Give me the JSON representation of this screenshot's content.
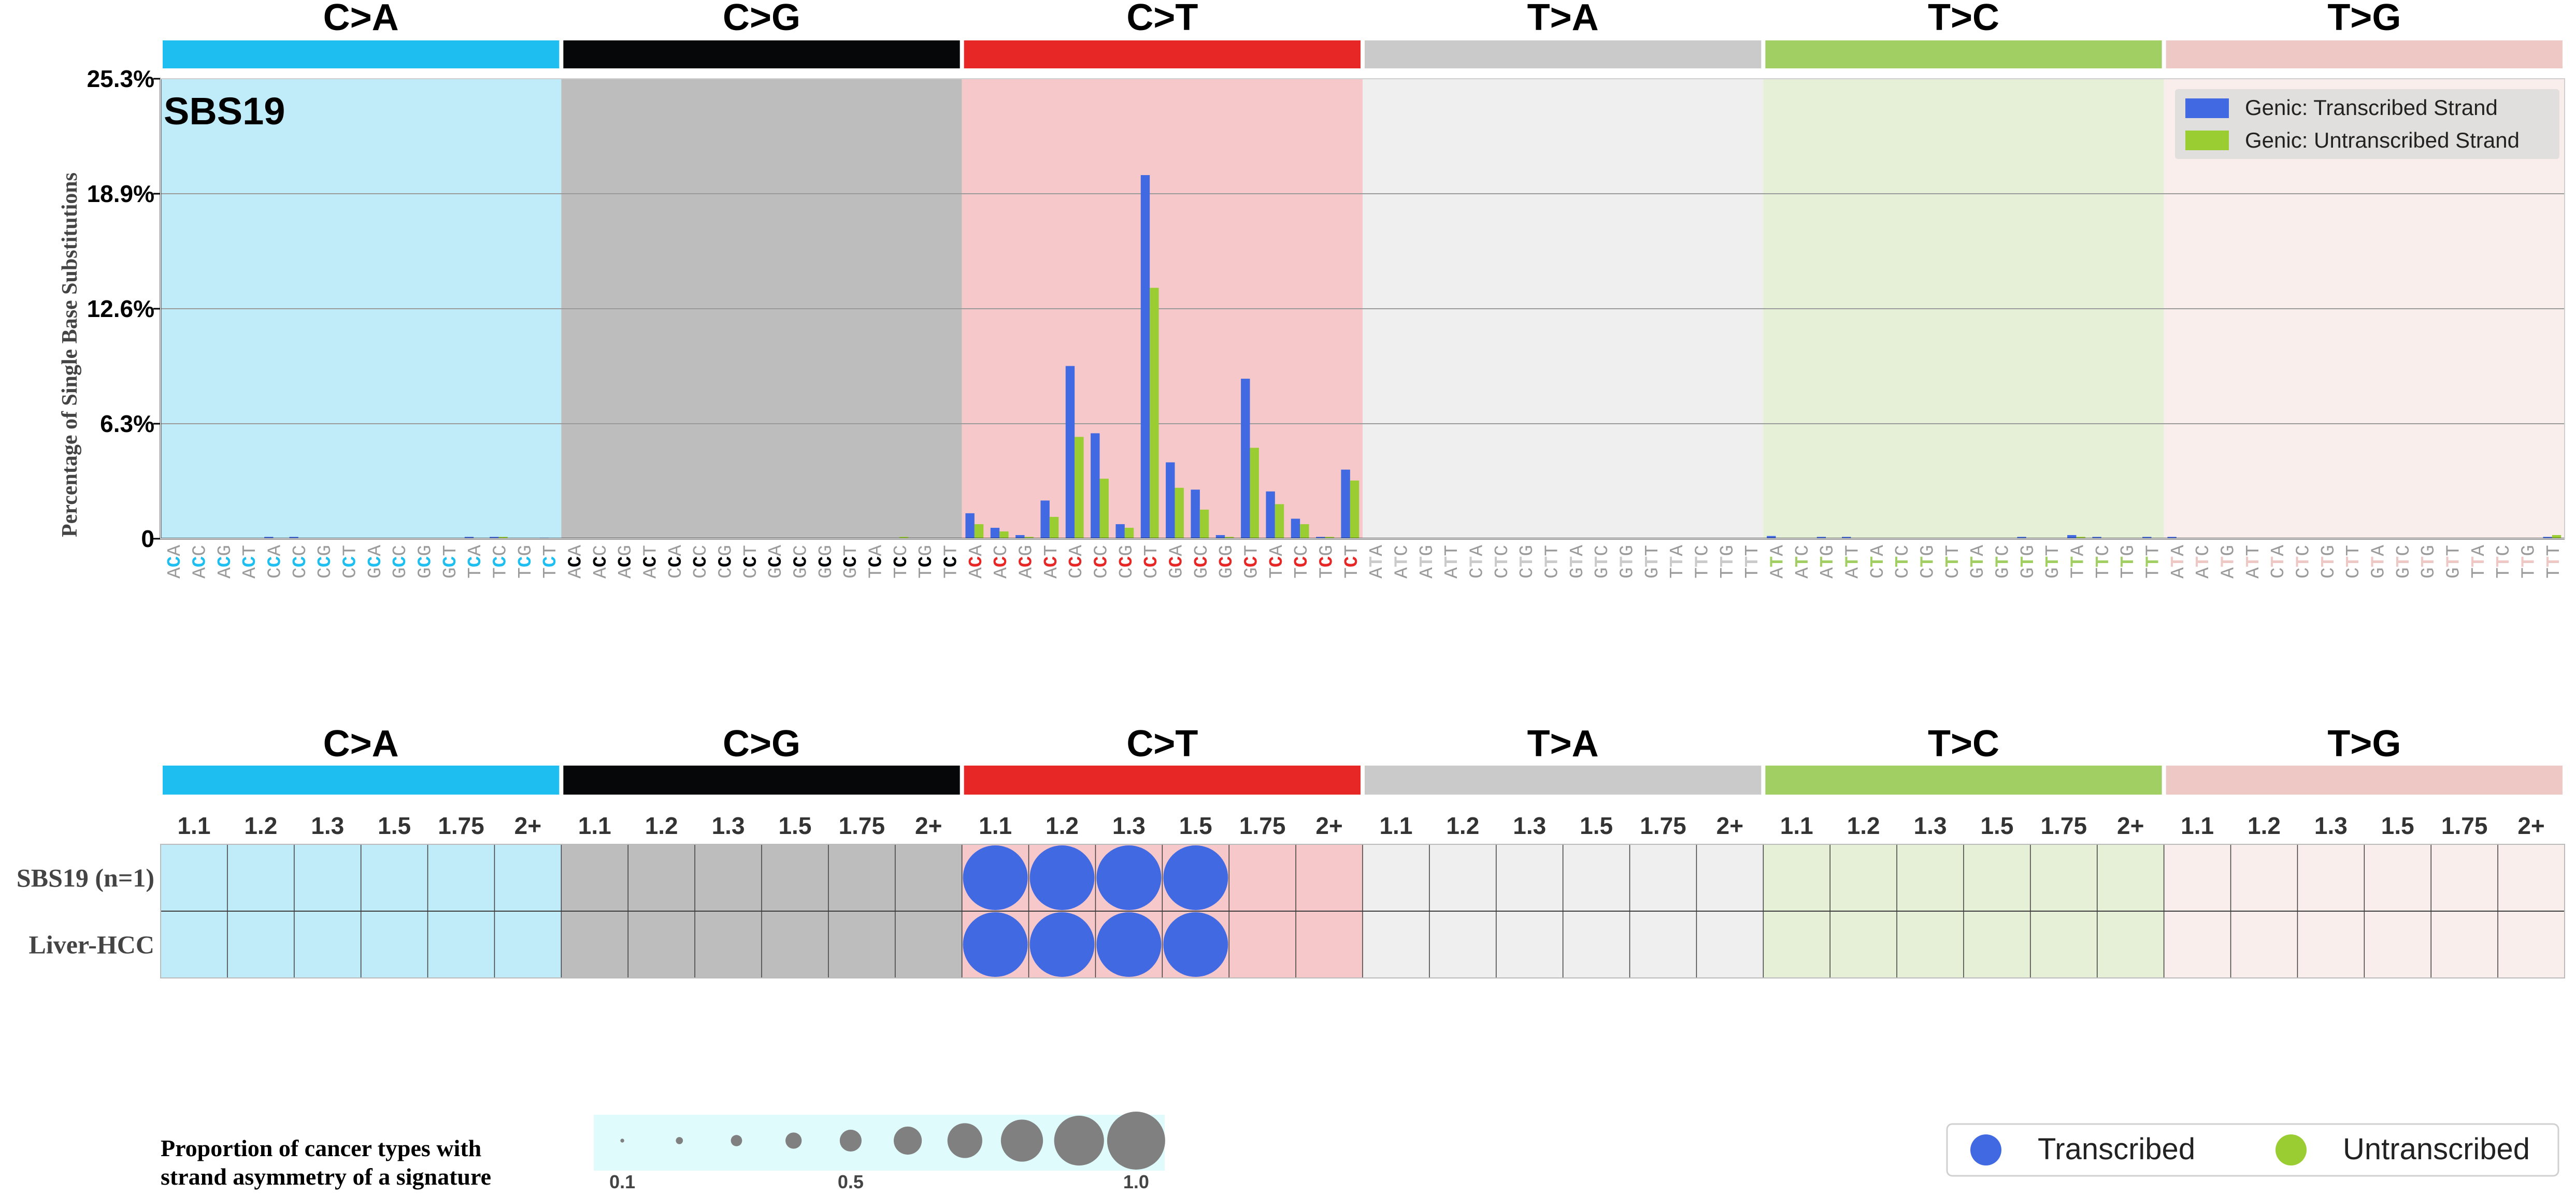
{
  "colors": {
    "C>A": "#1ebff0",
    "C>G": "#050708",
    "C>T": "#e62725",
    "T>A": "#cbcacb",
    "T>C": "#a1cf64",
    "T>G": "#edc8c5",
    "bg_C>A": "#c0ebf8",
    "bg_C>G": "#bdbdbd",
    "bg_C>T": "#f6c8c9",
    "bg_T>A": "#efefef",
    "bg_T>C": "#e5f0d6",
    "bg_T>G": "#f9eeec",
    "transcribed": "#4169e1",
    "untranscribed": "#9acd32"
  },
  "top": {
    "signature": "SBS19",
    "ylabel": "Percentage of Single Base Substitutions",
    "yticks": [
      "0",
      "6.3%",
      "12.6%",
      "18.9%",
      "25.3%"
    ],
    "legend": {
      "transcribed": "Genic: Transcribed Strand",
      "untranscribed": "Genic: Untranscribed Strand"
    }
  },
  "mutation_types": [
    "C>A",
    "C>G",
    "C>T",
    "T>A",
    "T>C",
    "T>G"
  ],
  "contexts": [
    "A_A",
    "A_C",
    "A_G",
    "A_T",
    "C_A",
    "C_C",
    "C_G",
    "C_T",
    "G_A",
    "G_C",
    "G_G",
    "G_T",
    "T_A",
    "T_C",
    "T_G",
    "T_T"
  ],
  "chart_data": [
    {
      "type": "bar",
      "title": "SBS19",
      "ylabel": "Percentage of Single Base Substitutions",
      "ylim": [
        0,
        25.3
      ],
      "legend_position": "top-right",
      "series": [
        {
          "name": "Genic: Transcribed Strand",
          "values": [
            0,
            0,
            0,
            0,
            0.1,
            0.1,
            0,
            0,
            0,
            0,
            0,
            0,
            0.1,
            0.1,
            0,
            0.05,
            0,
            0,
            0,
            0,
            0,
            0,
            0,
            0,
            0,
            0,
            0,
            0,
            0,
            0,
            0,
            0,
            1.4,
            0.6,
            0.2,
            2.1,
            9.5,
            5.8,
            0.8,
            20.0,
            4.2,
            2.7,
            0.2,
            8.8,
            2.6,
            1.1,
            0.1,
            3.8,
            0,
            0,
            0,
            0,
            0,
            0,
            0,
            0,
            0,
            0,
            0,
            0,
            0,
            0,
            0,
            0,
            0.15,
            0,
            0.1,
            0.1,
            0,
            0,
            0,
            0,
            0,
            0,
            0.1,
            0,
            0.2,
            0.1,
            0,
            0.1,
            0.1,
            0,
            0,
            0,
            0,
            0,
            0,
            0,
            0,
            0,
            0,
            0,
            0,
            0,
            0,
            0.1
          ]
        },
        {
          "name": "Genic: Untranscribed Strand",
          "values": [
            0,
            0,
            0,
            0,
            0,
            0,
            0,
            0,
            0,
            0,
            0,
            0,
            0,
            0.1,
            0,
            0,
            0,
            0,
            0,
            0,
            0,
            0,
            0,
            0,
            0,
            0,
            0,
            0,
            0,
            0.1,
            0,
            0,
            0.8,
            0.4,
            0.1,
            1.2,
            5.6,
            3.3,
            0.6,
            13.8,
            2.8,
            1.6,
            0.1,
            5.0,
            1.9,
            0.8,
            0.1,
            3.2,
            0,
            0,
            0,
            0,
            0,
            0,
            0,
            0,
            0,
            0,
            0,
            0,
            0,
            0,
            0,
            0,
            0,
            0,
            0,
            0,
            0,
            0,
            0,
            0,
            0,
            0,
            0,
            0,
            0.1,
            0,
            0,
            0,
            0,
            0,
            0,
            0,
            0,
            0,
            0,
            0,
            0,
            0,
            0,
            0,
            0,
            0,
            0,
            0.2
          ]
        }
      ]
    },
    {
      "type": "scatter",
      "x_labels": [
        "1.1",
        "1.2",
        "1.3",
        "1.5",
        "1.75",
        "2+"
      ],
      "rows": [
        "SBS19 (n=1)",
        "Liver-HCC"
      ],
      "points": [
        {
          "row": "SBS19 (n=1)",
          "type": "C>T",
          "x": "1.1",
          "strand": "Transcribed",
          "proportion": 1.0
        },
        {
          "row": "SBS19 (n=1)",
          "type": "C>T",
          "x": "1.2",
          "strand": "Transcribed",
          "proportion": 1.0
        },
        {
          "row": "SBS19 (n=1)",
          "type": "C>T",
          "x": "1.3",
          "strand": "Transcribed",
          "proportion": 1.0
        },
        {
          "row": "SBS19 (n=1)",
          "type": "C>T",
          "x": "1.5",
          "strand": "Transcribed",
          "proportion": 1.0
        },
        {
          "row": "Liver-HCC",
          "type": "C>T",
          "x": "1.1",
          "strand": "Transcribed",
          "proportion": 1.0
        },
        {
          "row": "Liver-HCC",
          "type": "C>T",
          "x": "1.2",
          "strand": "Transcribed",
          "proportion": 1.0
        },
        {
          "row": "Liver-HCC",
          "type": "C>T",
          "x": "1.3",
          "strand": "Transcribed",
          "proportion": 1.0
        },
        {
          "row": "Liver-HCC",
          "type": "C>T",
          "x": "1.5",
          "strand": "Transcribed",
          "proportion": 1.0
        }
      ]
    }
  ],
  "bottom": {
    "size_legend_title_1": "Proportion of cancer types with",
    "size_legend_title_2": "strand asymmetry of a signature",
    "size_legend_values": [
      0.1,
      0.2,
      0.3,
      0.4,
      0.5,
      0.6,
      0.7,
      0.8,
      0.9,
      1.0
    ],
    "size_legend_labels": [
      "0.1",
      "0.5",
      "1.0"
    ],
    "strand_legend": {
      "transcribed": "Transcribed",
      "untranscribed": "Untranscribed"
    }
  }
}
